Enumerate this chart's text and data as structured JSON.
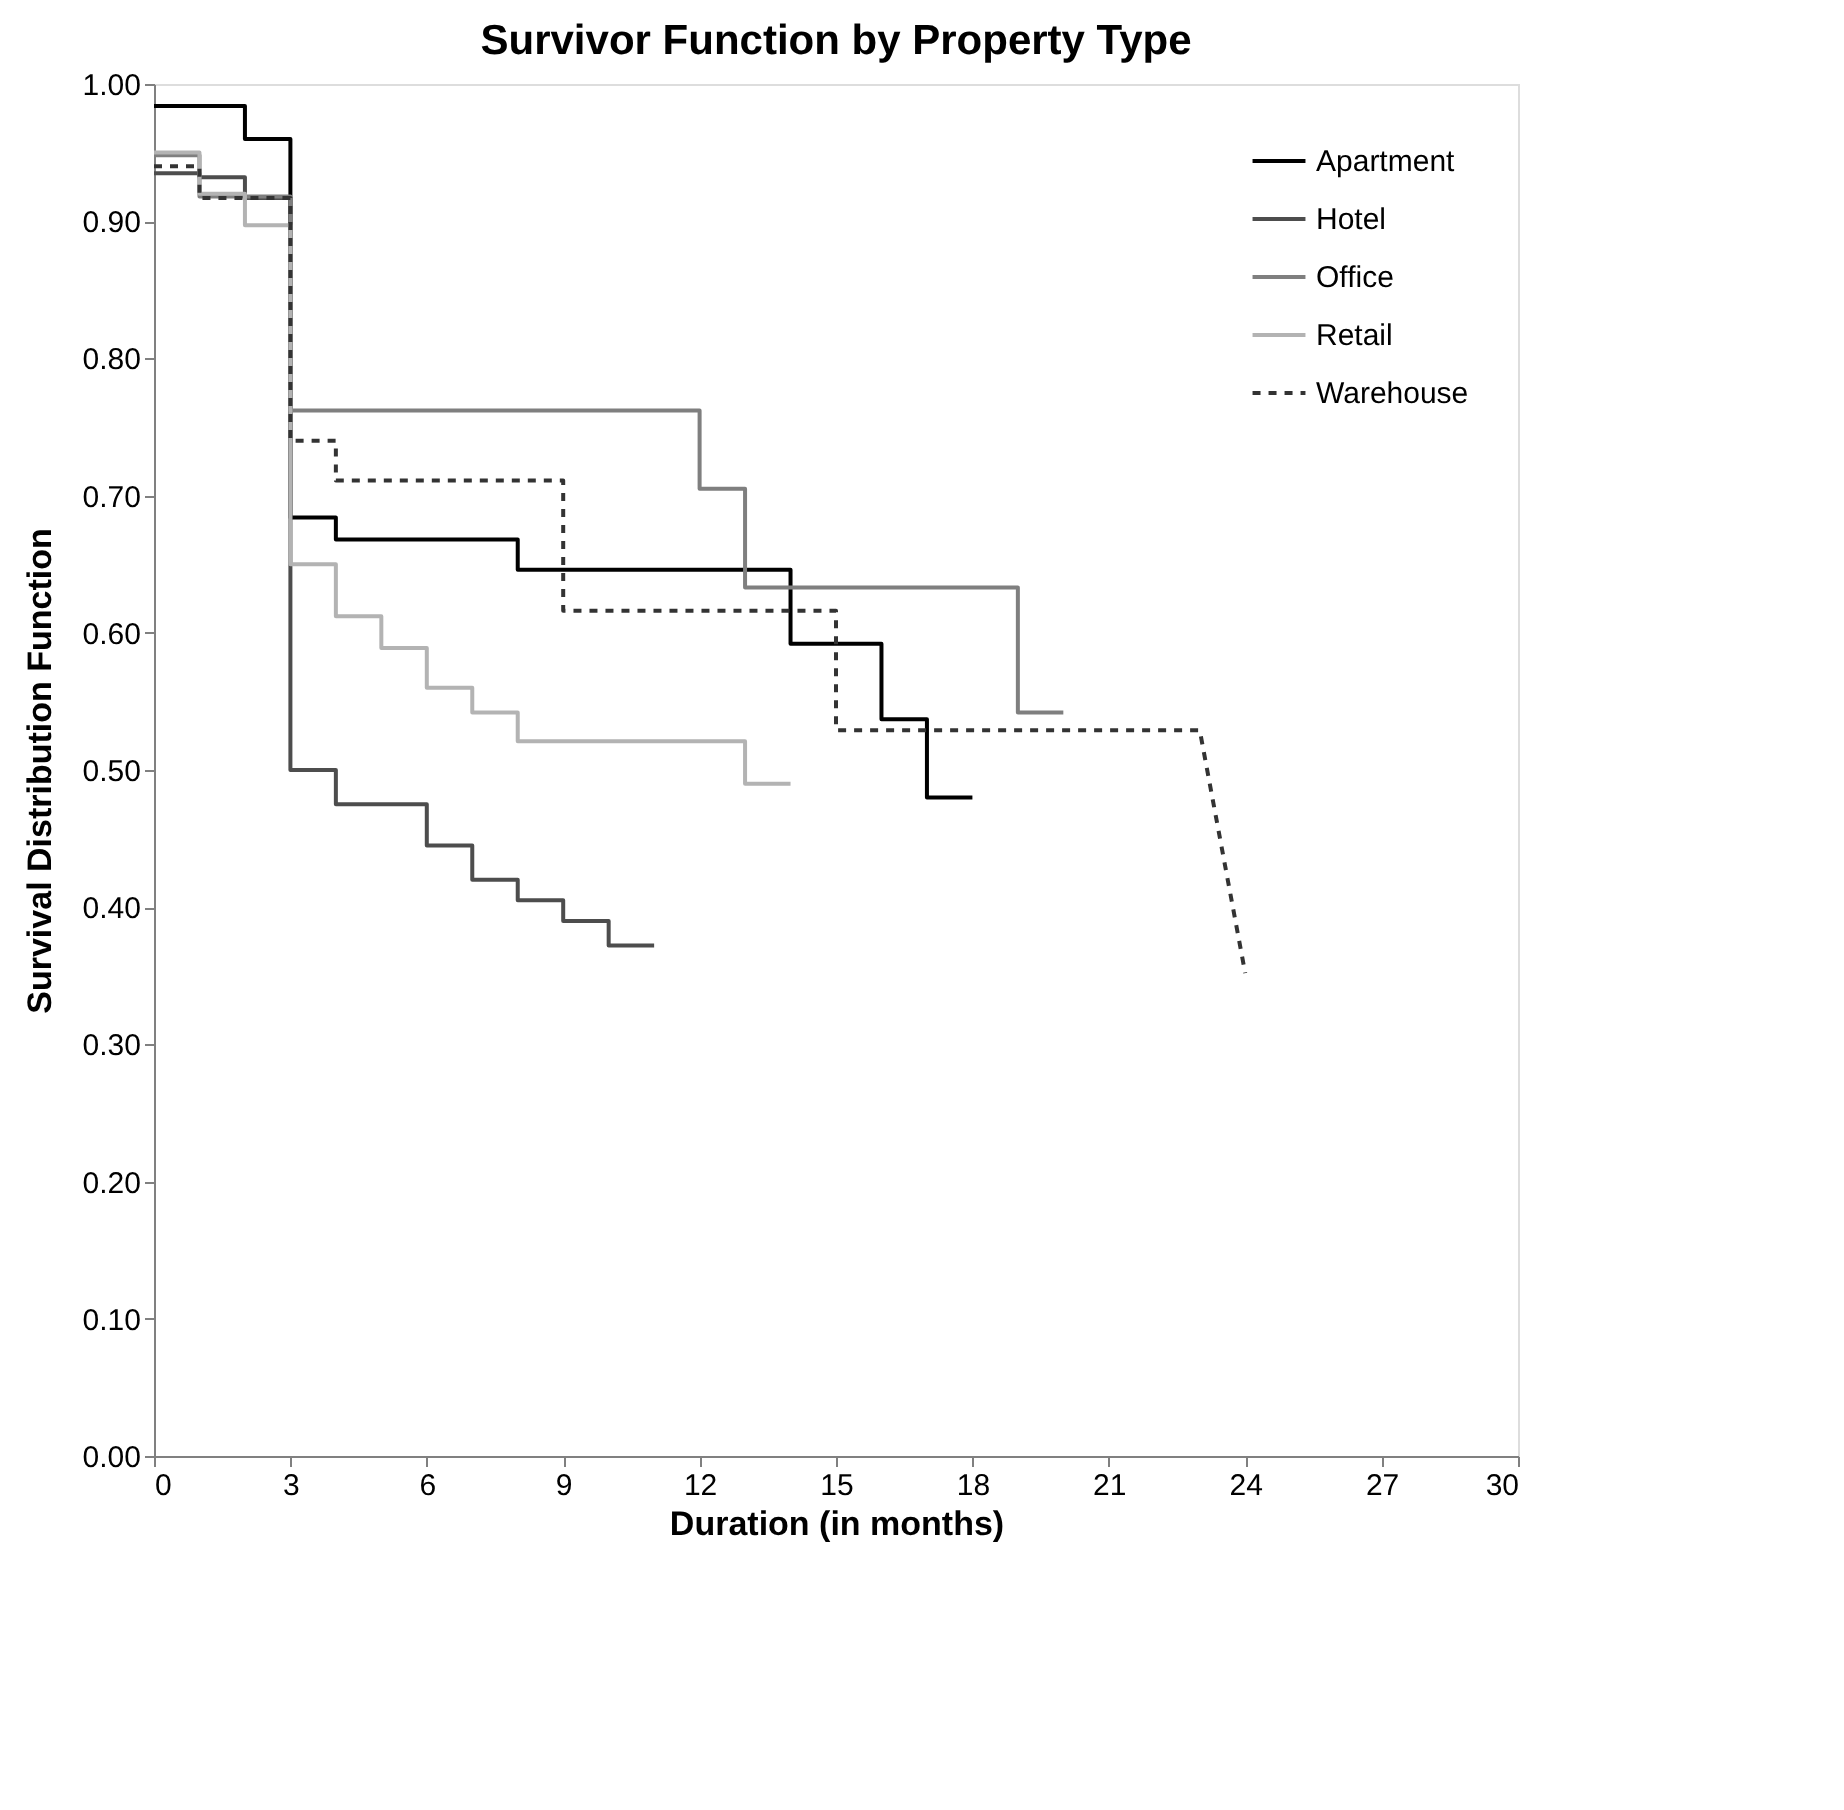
{
  "chart_data": {
    "type": "line",
    "title": "Survivor Function by Property Type",
    "xlabel": "Duration (in months)",
    "ylabel": "Survival Distribution Function",
    "xlim": [
      0,
      30
    ],
    "xticks": [
      0,
      3,
      6,
      9,
      12,
      15,
      18,
      21,
      24,
      27,
      30
    ],
    "ylim": [
      0,
      1
    ],
    "yticks": [
      {
        "value": 0,
        "label": "0.00"
      },
      {
        "value": 0.1,
        "label": "0.10"
      },
      {
        "value": 0.2,
        "label": "0.20"
      },
      {
        "value": 0.3,
        "label": "0.30"
      },
      {
        "value": 0.4,
        "label": "0.40"
      },
      {
        "value": 0.5,
        "label": "0.50"
      },
      {
        "value": 0.6,
        "label": "0.60"
      },
      {
        "value": 0.7,
        "label": "0.70"
      },
      {
        "value": 0.8,
        "label": "0.80"
      },
      {
        "value": 0.9,
        "label": "0.90"
      },
      {
        "value": 1,
        "label": "1.00"
      }
    ],
    "grid": false,
    "legend": "top right",
    "marker": "none",
    "series": [
      {
        "name": "Apartment",
        "color": "#000000",
        "line_style": "solid",
        "x": [
          0,
          2,
          2,
          3,
          3,
          4,
          4,
          8,
          8,
          14,
          14,
          16,
          16,
          17,
          17,
          18
        ],
        "values": [
          0.984,
          0.984,
          0.96,
          0.96,
          0.684,
          0.684,
          0.668,
          0.668,
          0.646,
          0.646,
          0.592,
          0.592,
          0.537,
          0.537,
          0.48,
          0.48
        ]
      },
      {
        "name": "Hotel",
        "color": "#4d4d4d",
        "line_style": "solid",
        "x": [
          0,
          1,
          1,
          2,
          2,
          3,
          3,
          4,
          4,
          6,
          6,
          7,
          7,
          8,
          8,
          9,
          9,
          10,
          10,
          11
        ],
        "values": [
          0.935,
          0.935,
          0.932,
          0.932,
          0.917,
          0.917,
          0.5,
          0.5,
          0.475,
          0.475,
          0.445,
          0.445,
          0.42,
          0.42,
          0.405,
          0.405,
          0.39,
          0.39,
          0.372,
          0.372
        ]
      },
      {
        "name": "Office",
        "color": "#7f7f7f",
        "line_style": "solid",
        "x": [
          0,
          1,
          1,
          3,
          3,
          12,
          12,
          13,
          13,
          19,
          19,
          20
        ],
        "values": [
          0.948,
          0.948,
          0.918,
          0.918,
          0.762,
          0.762,
          0.705,
          0.705,
          0.633,
          0.633,
          0.542,
          0.542
        ]
      },
      {
        "name": "Retail",
        "color": "#b3b3b3",
        "line_style": "solid",
        "x": [
          0,
          1,
          1,
          2,
          2,
          3,
          3,
          4,
          4,
          5,
          5,
          6,
          6,
          7,
          7,
          8,
          8,
          13,
          13,
          14
        ],
        "values": [
          0.95,
          0.95,
          0.92,
          0.92,
          0.897,
          0.897,
          0.65,
          0.65,
          0.612,
          0.612,
          0.589,
          0.589,
          0.56,
          0.56,
          0.542,
          0.542,
          0.521,
          0.521,
          0.49,
          0.49
        ]
      },
      {
        "name": "Warehouse",
        "color": "#333333",
        "line_style": "dashed",
        "x": [
          0,
          1,
          1,
          3,
          3,
          4,
          4,
          9,
          9,
          15,
          15,
          23,
          24
        ],
        "values": [
          0.94,
          0.94,
          0.917,
          0.917,
          0.74,
          0.74,
          0.711,
          0.711,
          0.616,
          0.616,
          0.529,
          0.529,
          0.352
        ]
      }
    ]
  }
}
